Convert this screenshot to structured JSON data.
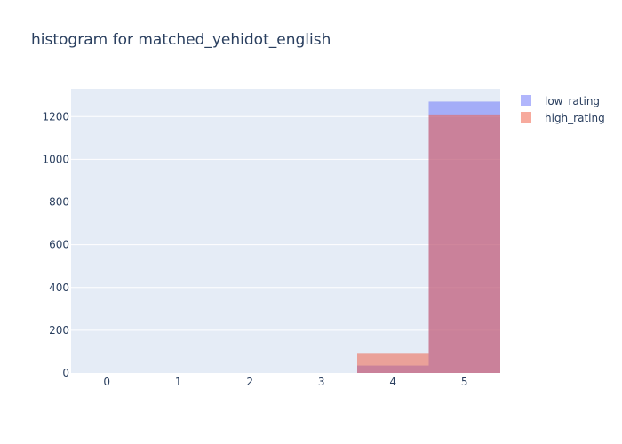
{
  "chart_data": {
    "type": "bar",
    "title": "histogram for matched_yehidot_english",
    "xlabel": "",
    "ylabel": "",
    "categories": [
      "0",
      "1",
      "2",
      "3",
      "4",
      "5"
    ],
    "series": [
      {
        "name": "low_rating",
        "values": [
          0,
          0,
          0,
          0,
          35,
          1270
        ],
        "color": "#636efa"
      },
      {
        "name": "high_rating",
        "values": [
          0,
          0,
          0,
          0,
          90,
          1210
        ],
        "color": "#ef553b"
      }
    ],
    "barmode": "overlay",
    "opacity": 0.5,
    "ylim": [
      0,
      1330
    ],
    "yticks": [
      0,
      200,
      400,
      600,
      800,
      1000,
      1200
    ],
    "grid": true,
    "legend_position": "top-right",
    "plot_bgcolor": "#e5ecf6",
    "gridcolor": "#ffffff",
    "font_color": "#2a3f5f"
  }
}
